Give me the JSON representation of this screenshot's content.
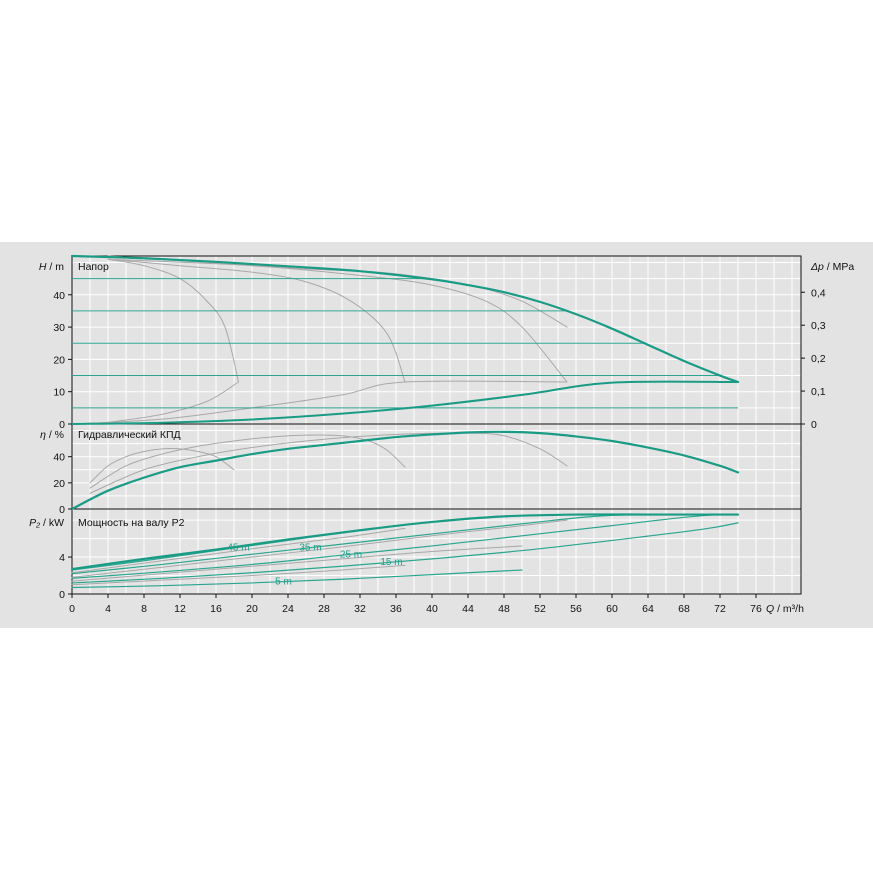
{
  "chart_data": {
    "type": "line",
    "colors": {
      "main": "#1a9b86",
      "thin": "#2aa58f",
      "gray": "#a8a8a8",
      "grid": "#ffffff",
      "panel": "#e3e3e3"
    },
    "x_axis": {
      "label_symbol": "Q",
      "label_unit": "m³/h",
      "range": [
        0,
        81
      ],
      "ticks": [
        0,
        4,
        8,
        12,
        16,
        20,
        24,
        28,
        32,
        36,
        40,
        44,
        48,
        52,
        56,
        60,
        64,
        68,
        72,
        76
      ]
    },
    "head": {
      "title": "Напор",
      "ylabel_symbol": "H",
      "ylabel_unit": "m",
      "right_symbol": "Δp",
      "right_unit": "MPa",
      "ylim": [
        0,
        52
      ],
      "ticks": [
        0,
        10,
        20,
        30,
        40
      ],
      "right_ticks": [
        0,
        0.1,
        0.2,
        0.3,
        0.4
      ],
      "right_tick_labels": [
        "0",
        "0,1",
        "0,2",
        "0,3",
        "0,4"
      ],
      "max_curve": [
        [
          0,
          52
        ],
        [
          8,
          51.3
        ],
        [
          16,
          50.2
        ],
        [
          24,
          48.8
        ],
        [
          32,
          47.3
        ],
        [
          40,
          44.8
        ],
        [
          44,
          43
        ],
        [
          48,
          40.8
        ],
        [
          52,
          37.8
        ],
        [
          56,
          34
        ],
        [
          60,
          29.5
        ],
        [
          64,
          24.5
        ],
        [
          68,
          19.5
        ],
        [
          72,
          15
        ],
        [
          74,
          13
        ]
      ],
      "system_curve": [
        [
          0,
          0
        ],
        [
          10,
          0.4
        ],
        [
          20,
          1.4
        ],
        [
          30,
          3.2
        ],
        [
          40,
          5.7
        ],
        [
          50,
          9
        ],
        [
          60,
          12.8
        ],
        [
          74,
          13
        ]
      ],
      "constant_heads": [
        45,
        35,
        25,
        15,
        5
      ],
      "gray_max": [
        [
          4,
          52
        ],
        [
          18,
          49.5
        ],
        [
          26,
          48
        ],
        [
          34,
          47
        ],
        [
          40,
          45
        ],
        [
          45,
          42.5
        ],
        [
          50,
          38
        ],
        [
          55,
          30
        ]
      ],
      "gray_curves": [
        [
          [
            4,
            51
          ],
          [
            8,
            49
          ],
          [
            12,
            45
          ],
          [
            15,
            38
          ],
          [
            17,
            30
          ],
          [
            18.5,
            13
          ]
        ],
        [
          [
            4,
            51
          ],
          [
            12,
            49
          ],
          [
            20,
            47
          ],
          [
            26,
            44
          ],
          [
            31,
            38
          ],
          [
            35,
            28
          ],
          [
            37,
            13
          ]
        ],
        [
          [
            4,
            51
          ],
          [
            20,
            49
          ],
          [
            32,
            46
          ],
          [
            40,
            43
          ],
          [
            46,
            38
          ],
          [
            50,
            30
          ],
          [
            55,
            13
          ]
        ]
      ],
      "gray_system": [
        [
          0,
          0
        ],
        [
          10,
          1.5
        ],
        [
          20,
          5
        ],
        [
          30,
          9
        ],
        [
          37,
          13
        ],
        [
          55,
          13
        ]
      ],
      "gray_lower": [
        [
          4,
          0.5
        ],
        [
          10,
          3
        ],
        [
          15,
          7
        ],
        [
          18.5,
          13
        ]
      ]
    },
    "efficiency": {
      "title": "Гидравлический КПД",
      "ylabel_symbol": "η",
      "ylabel_unit": "%",
      "ylim": [
        0,
        65
      ],
      "ticks": [
        0,
        20,
        40
      ],
      "main_curve": [
        [
          0,
          0
        ],
        [
          4,
          14
        ],
        [
          8,
          24
        ],
        [
          12,
          32
        ],
        [
          16,
          37
        ],
        [
          20,
          42
        ],
        [
          24,
          46
        ],
        [
          28,
          49
        ],
        [
          32,
          52
        ],
        [
          36,
          55
        ],
        [
          40,
          57
        ],
        [
          44,
          58.5
        ],
        [
          48,
          59
        ],
        [
          52,
          58
        ],
        [
          56,
          55.5
        ],
        [
          60,
          52
        ],
        [
          64,
          47
        ],
        [
          68,
          41
        ],
        [
          72,
          33
        ],
        [
          74,
          28
        ]
      ],
      "gray_curves": [
        [
          [
            2,
            20
          ],
          [
            4,
            33
          ],
          [
            6,
            40
          ],
          [
            8,
            44
          ],
          [
            10,
            46
          ],
          [
            12,
            46
          ],
          [
            14,
            44
          ],
          [
            16,
            40
          ],
          [
            18,
            30
          ]
        ],
        [
          [
            2,
            16
          ],
          [
            6,
            33
          ],
          [
            10,
            42
          ],
          [
            14,
            48
          ],
          [
            18,
            52
          ],
          [
            22,
            55
          ],
          [
            26,
            56.5
          ],
          [
            30,
            56
          ],
          [
            33,
            52
          ],
          [
            35,
            45
          ],
          [
            37,
            32
          ]
        ],
        [
          [
            2,
            12
          ],
          [
            8,
            30
          ],
          [
            14,
            40
          ],
          [
            20,
            47
          ],
          [
            26,
            52
          ],
          [
            32,
            55.5
          ],
          [
            38,
            57.5
          ],
          [
            44,
            58
          ],
          [
            48,
            56
          ],
          [
            52,
            46
          ],
          [
            55,
            33
          ]
        ]
      ]
    },
    "power": {
      "title": "Мощность на валу P2",
      "ylabel_symbol": "P₂",
      "ylabel_unit": "kW",
      "ylim": [
        0,
        9.2
      ],
      "ticks": [
        0,
        4
      ],
      "main_curve": [
        [
          0,
          2.7
        ],
        [
          8,
          3.8
        ],
        [
          16,
          4.8
        ],
        [
          24,
          5.9
        ],
        [
          32,
          6.9
        ],
        [
          40,
          7.8
        ],
        [
          48,
          8.4
        ],
        [
          56,
          8.6
        ],
        [
          64,
          8.6
        ],
        [
          72,
          8.6
        ],
        [
          74,
          8.6
        ]
      ],
      "constant_head_curves": [
        {
          "label": "45 m",
          "points": [
            [
              0,
              2.6
            ],
            [
              8,
              3.6
            ],
            [
              16,
              4.7
            ],
            [
              24,
              5.8
            ],
            [
              32,
              6.9
            ],
            [
              40,
              7.8
            ],
            [
              48,
              8.4
            ],
            [
              55,
              8.6
            ]
          ]
        },
        {
          "label": "35 m",
          "points": [
            [
              0,
              2.2
            ],
            [
              10,
              3.2
            ],
            [
              20,
              4.3
            ],
            [
              30,
              5.4
            ],
            [
              40,
              6.5
            ],
            [
              50,
              7.6
            ],
            [
              58,
              8.4
            ],
            [
              64,
              8.6
            ]
          ]
        },
        {
          "label": "25 m",
          "points": [
            [
              0,
              1.7
            ],
            [
              10,
              2.4
            ],
            [
              20,
              3.2
            ],
            [
              30,
              4.2
            ],
            [
              40,
              5.2
            ],
            [
              50,
              6.3
            ],
            [
              60,
              7.4
            ],
            [
              68,
              8.3
            ],
            [
              72,
              8.6
            ]
          ]
        },
        {
          "label": "15 m",
          "points": [
            [
              0,
              1.2
            ],
            [
              10,
              1.7
            ],
            [
              20,
              2.3
            ],
            [
              30,
              3
            ],
            [
              40,
              3.8
            ],
            [
              50,
              4.7
            ],
            [
              60,
              5.8
            ],
            [
              70,
              7
            ],
            [
              74,
              7.7
            ]
          ]
        },
        {
          "label": "5 m",
          "points": [
            [
              0,
              0.7
            ],
            [
              10,
              0.9
            ],
            [
              20,
              1.2
            ],
            [
              30,
              1.6
            ],
            [
              40,
              2.1
            ],
            [
              50,
              2.6
            ]
          ]
        }
      ],
      "gray_curves": [
        [
          [
            0,
            2.3
          ],
          [
            10,
            3.6
          ],
          [
            20,
            4.9
          ],
          [
            30,
            6.1
          ],
          [
            37,
            7.1
          ]
        ],
        [
          [
            0,
            1.8
          ],
          [
            10,
            2.9
          ],
          [
            20,
            4
          ],
          [
            30,
            5.1
          ],
          [
            40,
            6.3
          ],
          [
            50,
            7.4
          ],
          [
            55,
            8
          ]
        ],
        [
          [
            0,
            1.4
          ],
          [
            10,
            2.2
          ],
          [
            20,
            3
          ],
          [
            30,
            3.8
          ],
          [
            40,
            4.6
          ],
          [
            50,
            5.2
          ]
        ],
        [
          [
            0,
            1
          ],
          [
            10,
            1.5
          ],
          [
            20,
            2
          ],
          [
            30,
            2.6
          ],
          [
            37,
            3.1
          ]
        ]
      ],
      "label_positions": {
        "45 m": 18.5,
        "35 m": 26.5,
        "25 m": 31,
        "15 m": 35.5,
        "5 m": 23.5
      }
    }
  }
}
